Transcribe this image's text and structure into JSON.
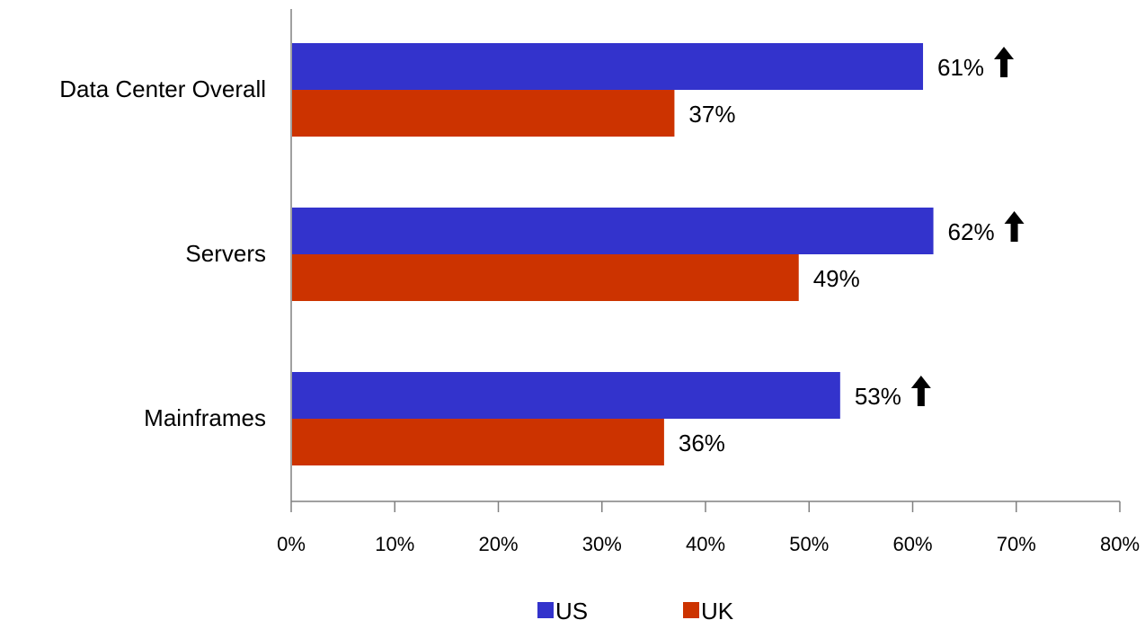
{
  "chart_data": {
    "type": "bar",
    "orientation": "horizontal",
    "categories": [
      "Data Center Overall",
      "Servers",
      "Mainframes"
    ],
    "series": [
      {
        "name": "US",
        "values": [
          61,
          62,
          53
        ],
        "color": "#3333CC",
        "labels": [
          "61%",
          "62%",
          "53%"
        ],
        "marker": "up-arrow-icon"
      },
      {
        "name": "UK",
        "values": [
          37,
          49,
          36
        ],
        "color": "#CC3300",
        "labels": [
          "37%",
          "49%",
          "36%"
        ]
      }
    ],
    "xlim": [
      0,
      80
    ],
    "xticks": [
      "0%",
      "10%",
      "20%",
      "30%",
      "40%",
      "50%",
      "60%",
      "70%",
      "80%"
    ],
    "grid": false,
    "legend_position": "bottom"
  }
}
